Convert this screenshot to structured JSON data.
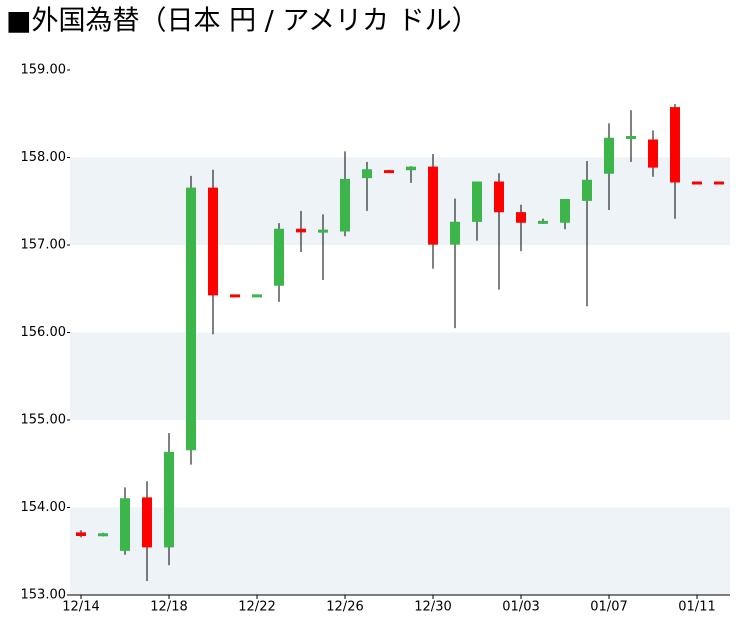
{
  "chart_data": {
    "type": "candlestick",
    "title": "■外国為替（日本 円 / アメリカ ドル）",
    "categories": [
      "12/14",
      null,
      null,
      null,
      "12/18",
      null,
      null,
      null,
      "12/22",
      null,
      null,
      null,
      "12/26",
      null,
      null,
      null,
      "12/30",
      null,
      null,
      null,
      "01/03",
      null,
      null,
      null,
      "01/07",
      null,
      null,
      null,
      "01/11",
      null
    ],
    "open": [
      153.71,
      153.68,
      153.51,
      154.11,
      153.55,
      154.66,
      157.65,
      156.43,
      156.42,
      156.54,
      157.18,
      157.15,
      157.16,
      157.77,
      157.85,
      157.86,
      157.89,
      157.01,
      157.27,
      157.72,
      157.37,
      157.25,
      157.26,
      157.51,
      157.82,
      158.22,
      158.2,
      158.57,
      157.72,
      157.72
    ],
    "high": [
      153.74,
      153.71,
      154.23,
      154.3,
      154.85,
      157.79,
      157.86,
      156.43,
      156.43,
      157.25,
      157.39,
      157.35,
      158.07,
      157.95,
      157.86,
      157.9,
      158.04,
      157.53,
      157.72,
      157.82,
      157.46,
      157.3,
      157.52,
      157.96,
      158.39,
      158.54,
      158.31,
      158.61,
      157.72,
      157.72
    ],
    "low": [
      153.66,
      153.67,
      153.46,
      153.16,
      153.34,
      154.49,
      155.98,
      156.42,
      156.42,
      156.35,
      156.92,
      156.6,
      157.1,
      157.39,
      157.84,
      157.71,
      156.73,
      156.05,
      157.05,
      156.49,
      156.93,
      157.24,
      157.18,
      156.3,
      157.4,
      157.95,
      157.78,
      157.3,
      157.71,
      157.71
    ],
    "close": [
      153.68,
      153.7,
      154.1,
      153.55,
      154.63,
      157.65,
      156.43,
      156.42,
      156.43,
      157.18,
      157.15,
      157.17,
      157.75,
      157.86,
      157.84,
      157.89,
      157.01,
      157.26,
      157.72,
      157.38,
      157.26,
      157.27,
      157.52,
      157.74,
      158.22,
      158.24,
      157.89,
      157.72,
      157.71,
      157.71
    ],
    "up_color": "#3cb54a",
    "down_color": "#ff0000",
    "band_color": "#eef3f8",
    "ylim": [
      153,
      159
    ],
    "yticks": [
      {
        "value": 153,
        "label": "153.00"
      },
      {
        "value": 154,
        "label": "154.00"
      },
      {
        "value": 155,
        "label": "155.00"
      },
      {
        "value": 156,
        "label": "156.00"
      },
      {
        "value": 157,
        "label": "157.00"
      },
      {
        "value": 158,
        "label": "158.00"
      },
      {
        "value": 159,
        "label": "159.00"
      }
    ],
    "grid": "bands"
  }
}
